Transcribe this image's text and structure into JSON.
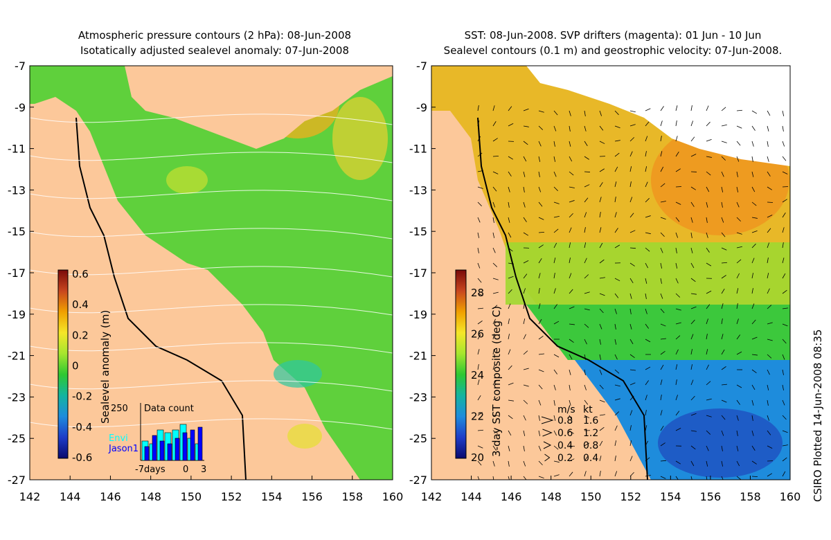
{
  "left_map": {
    "title_line1": "Atmospheric pressure contours (2 hPa): 08-Jun-2008",
    "title_line2": "Isotatically adjusted sealevel anomaly: 07-Jun-2008",
    "colorbar_label": "Sealevel anomaly (m)",
    "colorbar_ticks": [
      "0.6",
      "0.4",
      "0.2",
      "0",
      "-0.2",
      "-0.4",
      "-0.6"
    ],
    "colorbar_colors": [
      "#7a0a0a",
      "#c8461e",
      "#f0a000",
      "#f5e628",
      "#a6e62e",
      "#2ec832",
      "#14b4a0",
      "#1e8cdc",
      "#1e3cc8",
      "#0a0a6e"
    ],
    "inset": {
      "title": "Data count",
      "ymax_label": "250",
      "legend": [
        "Envi",
        "Jason1"
      ],
      "legend_colors": [
        "#00ffff",
        "#0000ff"
      ],
      "xtick_labels": [
        "-7days",
        "0",
        "3"
      ],
      "envi_bars": [
        0.35,
        0.3,
        0.55,
        0.5,
        0.55,
        0.65,
        0.4,
        0.3
      ],
      "jason_bars": [
        0.25,
        0.45,
        0.35,
        0.3,
        0.4,
        0.5,
        0.55,
        0.6
      ]
    }
  },
  "right_map": {
    "title_line1": "SST: 08-Jun-2008. SVP drifters (magenta): 01 Jun - 10 Jun",
    "title_line2": "Sealevel contours (0.1 m) and geostrophic velocity: 07-Jun-2008.",
    "colorbar_label": "3-day SST composite (deg C)",
    "colorbar_ticks": [
      "28",
      "26",
      "24",
      "22",
      "20"
    ],
    "colorbar_colors": [
      "#7a0a0a",
      "#c8461e",
      "#f0a000",
      "#f5e628",
      "#a6e62e",
      "#2ec832",
      "#14b4a0",
      "#1e8cdc",
      "#1e3cc8",
      "#0a0a6e"
    ],
    "velocity_legend": {
      "header": [
        "m/s",
        "kt"
      ],
      "rows": [
        [
          "0.8",
          "1.6"
        ],
        [
          "0.6",
          "1.2"
        ],
        [
          "0.4",
          "0.8"
        ],
        [
          "0.2",
          "0.4"
        ]
      ]
    }
  },
  "axes": {
    "y_ticks": [
      "-7",
      "-9",
      "-11",
      "-13",
      "-15",
      "-17",
      "-19",
      "-21",
      "-23",
      "-25",
      "-27"
    ],
    "x_ticks": [
      "142",
      "144",
      "146",
      "148",
      "150",
      "152",
      "154",
      "156",
      "158",
      "160"
    ],
    "lat_range": [
      -7,
      -27
    ],
    "lon_range": [
      142,
      160
    ]
  },
  "credit": "CSIRO Plotted 14-Jun-2008 08:35",
  "colors": {
    "land": "#fcc89a",
    "sea_green": "#5fd03c",
    "sea_yellow": "#e6d82a",
    "sea_orange": "#f0a81e",
    "sea_blue": "#1e70d8",
    "cloud": "#ffffff"
  }
}
